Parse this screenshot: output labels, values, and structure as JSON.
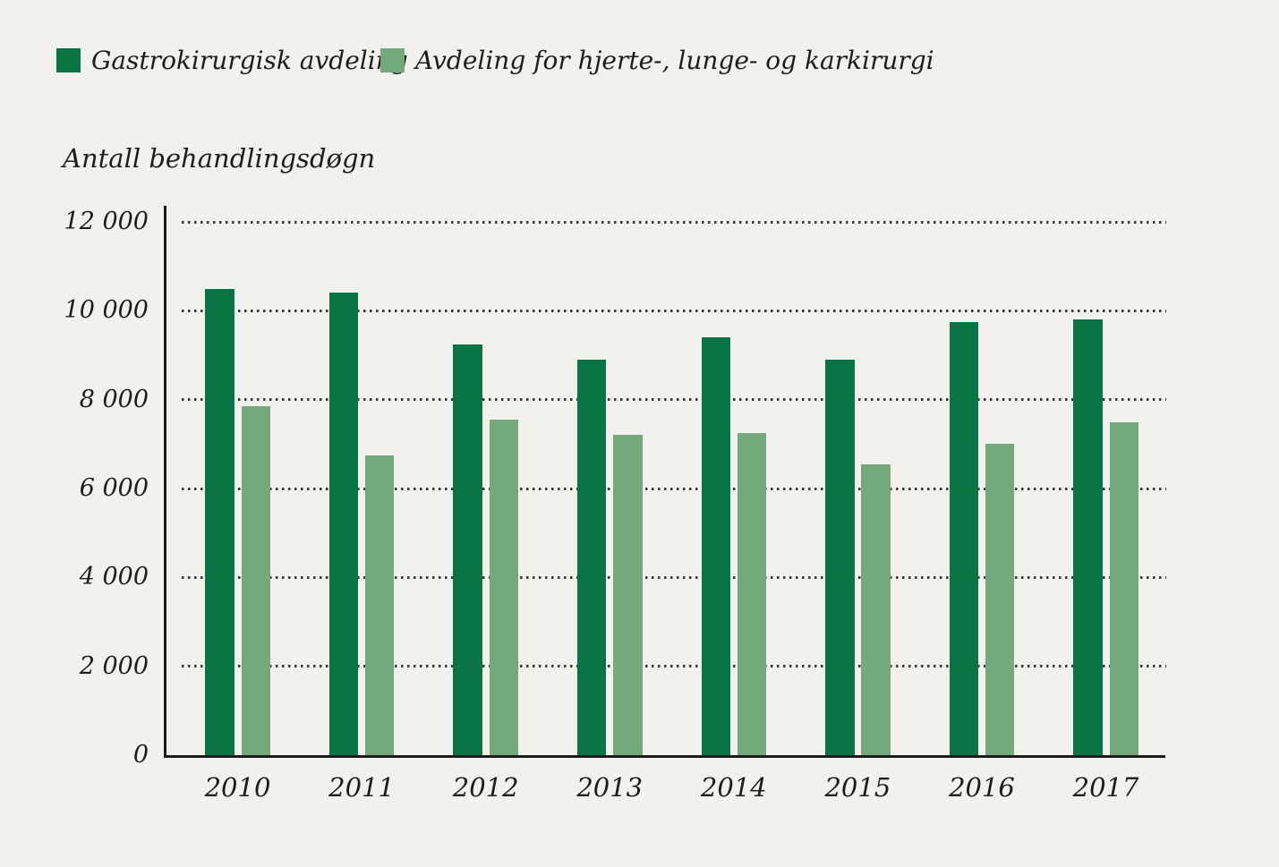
{
  "legend": [
    {
      "label": "Gastrokirurgisk avdeling",
      "color": "#087444"
    },
    {
      "label": "Avdeling for hjerte-, lunge- og karkirurgi",
      "color": "#74a97c"
    }
  ],
  "y_axis_title": "Antall behandlingsdøgn",
  "chart_data": {
    "type": "bar",
    "title": "",
    "xlabel": "",
    "ylabel": "Antall behandlingsdøgn",
    "categories": [
      "2010",
      "2011",
      "2012",
      "2013",
      "2014",
      "2015",
      "2016",
      "2017"
    ],
    "series": [
      {
        "name": "Gastrokirurgisk avdeling",
        "color": "#087444",
        "values": [
          10500,
          10400,
          9250,
          8900,
          9400,
          8900,
          9750,
          9800
        ]
      },
      {
        "name": "Avdeling for hjerte-, lunge- og karkirurgi",
        "color": "#74a97c",
        "values": [
          7850,
          6750,
          7550,
          7200,
          7250,
          6550,
          7000,
          7500
        ]
      }
    ],
    "ylim": [
      0,
      12000
    ],
    "ytick_step": 2000,
    "ytick_labels": [
      "0",
      "2 000",
      "4 000",
      "6 000",
      "8 000",
      "10 000",
      "12 000"
    ],
    "grid": "horizontal-dotted",
    "legend_position": "top-left"
  },
  "colors": {
    "background": "#f2f1ee",
    "axis": "#1c1c1a",
    "grid_dots": "#3a3a38",
    "text": "#1d1d1b"
  }
}
